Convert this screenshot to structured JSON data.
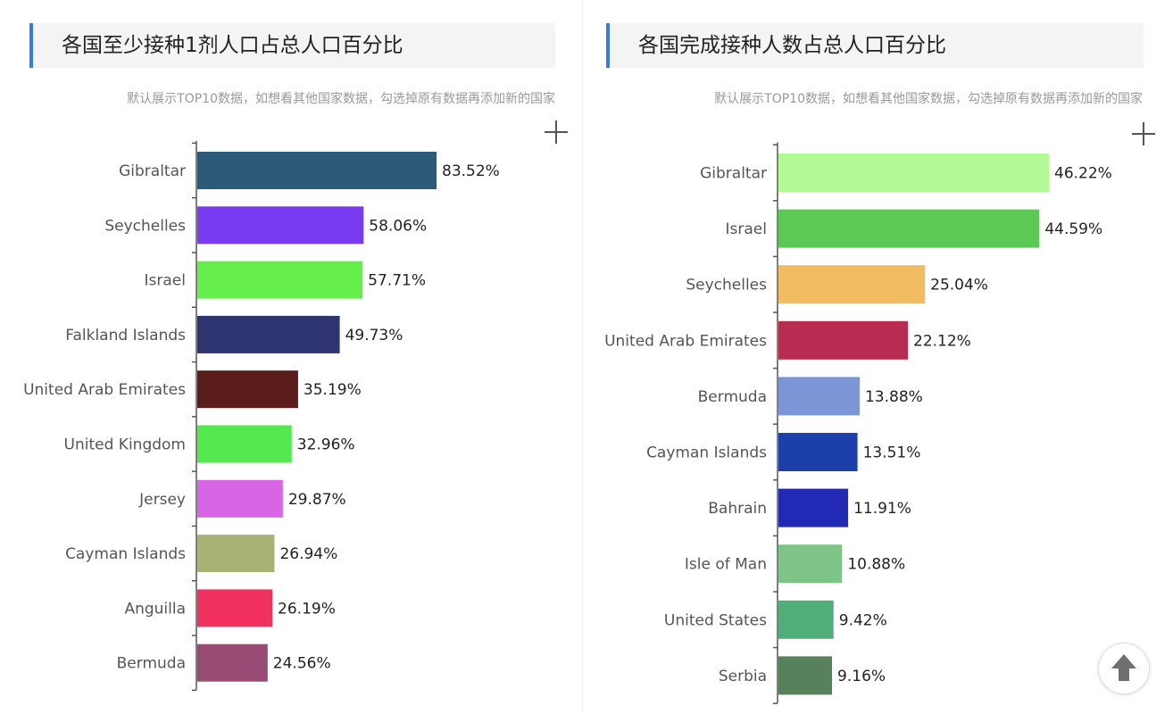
{
  "left_panel": {
    "title": "各国至少接种1剂人口占总人口百分比",
    "subtitle": "默认展示TOP10数据，如想看其他国家数据，勾选掉原有数据再添加新的国家",
    "add_icon": "plus-icon"
  },
  "right_panel": {
    "title": "各国完成接种人数占总人口百分比",
    "subtitle": "默认展示TOP10数据，如想看其他国家数据，勾选掉原有数据再添加新的国家",
    "add_icon": "plus-icon"
  },
  "scroll_top_icon": "arrow-up-icon",
  "accent_color": "#3b7bd8",
  "chart_data": [
    {
      "type": "bar",
      "orientation": "horizontal",
      "title": "各国至少接种1剂人口占总人口百分比",
      "categories": [
        "Gibraltar",
        "Seychelles",
        "Israel",
        "Falkland Islands",
        "United Arab Emirates",
        "United Kingdom",
        "Jersey",
        "Cayman Islands",
        "Anguilla",
        "Bermuda"
      ],
      "values": [
        83.52,
        58.06,
        57.71,
        49.73,
        35.19,
        32.96,
        29.87,
        26.94,
        26.19,
        24.56
      ],
      "value_labels": [
        "83.52%",
        "58.06%",
        "57.71%",
        "49.73%",
        "35.19%",
        "32.96%",
        "29.87%",
        "26.94%",
        "26.19%",
        "24.56%"
      ],
      "colors": [
        "#2d5a78",
        "#7a3cf0",
        "#66ee4a",
        "#2e3470",
        "#5a1d1c",
        "#55e84e",
        "#d865e3",
        "#a7b374",
        "#f0305e",
        "#974a72"
      ],
      "xlim": [
        0,
        100
      ],
      "grid": false,
      "legend": "none"
    },
    {
      "type": "bar",
      "orientation": "horizontal",
      "title": "各国完成接种人数占总人口百分比",
      "categories": [
        "Gibraltar",
        "Israel",
        "Seychelles",
        "United Arab Emirates",
        "Bermuda",
        "Cayman Islands",
        "Bahrain",
        "Isle of Man",
        "United States",
        "Serbia"
      ],
      "values": [
        46.22,
        44.59,
        25.04,
        22.12,
        13.88,
        13.51,
        11.91,
        10.88,
        9.42,
        9.16
      ],
      "value_labels": [
        "46.22%",
        "44.59%",
        "25.04%",
        "22.12%",
        "13.88%",
        "13.51%",
        "11.91%",
        "10.88%",
        "9.42%",
        "9.16%"
      ],
      "colors": [
        "#b2fa94",
        "#5dc955",
        "#f1bb62",
        "#b72c50",
        "#7b95d6",
        "#1c3faa",
        "#2229b4",
        "#7ec489",
        "#52ae78",
        "#56815a"
      ],
      "xlim": [
        0,
        60
      ],
      "grid": false,
      "legend": "none"
    }
  ]
}
